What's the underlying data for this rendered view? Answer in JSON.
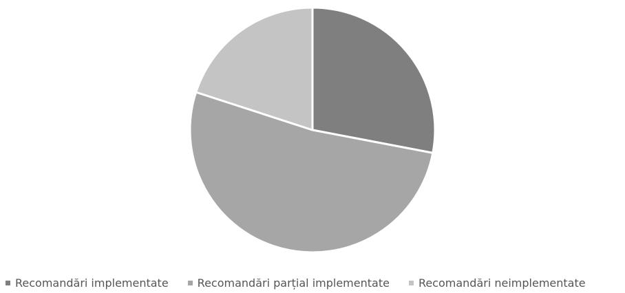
{
  "chart_data": {
    "type": "pie",
    "categories": [
      "Recomandări implementate",
      "Recomandări parțial implementate",
      "Recomandări neimplementate"
    ],
    "values": [
      28,
      52,
      20
    ],
    "colors": [
      "#7f7f7f",
      "#a6a6a6",
      "#c4c4c4"
    ],
    "start_angle_deg": 0,
    "direction": "clockwise",
    "legend_position": "bottom",
    "title": ""
  }
}
